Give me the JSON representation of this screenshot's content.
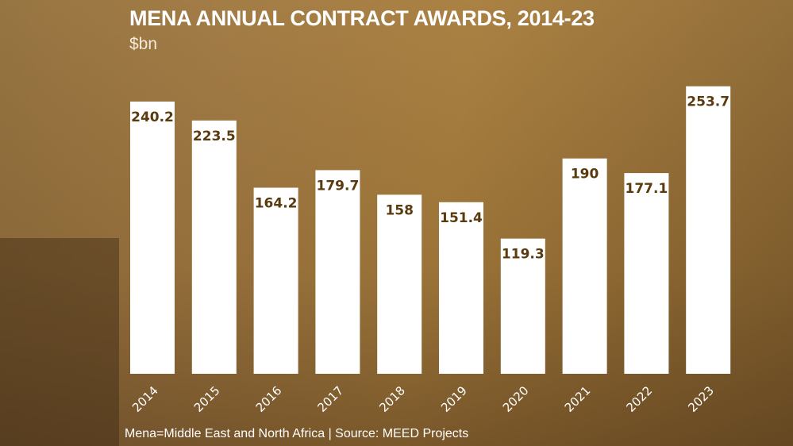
{
  "chart_data": {
    "type": "bar",
    "title": "MENA ANNUAL CONTRACT AWARDS, 2014-23",
    "subtitle": "$bn",
    "categories": [
      "2014",
      "2015",
      "2016",
      "2017",
      "2018",
      "2019",
      "2020",
      "2021",
      "2022",
      "2023"
    ],
    "values": [
      240.2,
      223.5,
      164.2,
      179.7,
      158,
      151.4,
      119.3,
      190,
      177.1,
      253.7
    ],
    "value_labels": [
      "240.2",
      "223.5",
      "164.2",
      "179.7",
      "158",
      "151.4",
      "119.3",
      "190",
      "177.1",
      "253.7"
    ],
    "ylim": [
      0,
      260
    ],
    "grid": false,
    "bar_color": "#ffffff",
    "label_color": "#5a3a0e",
    "source": "Mena=Middle East and North Africa | Source: MEED Projects"
  }
}
